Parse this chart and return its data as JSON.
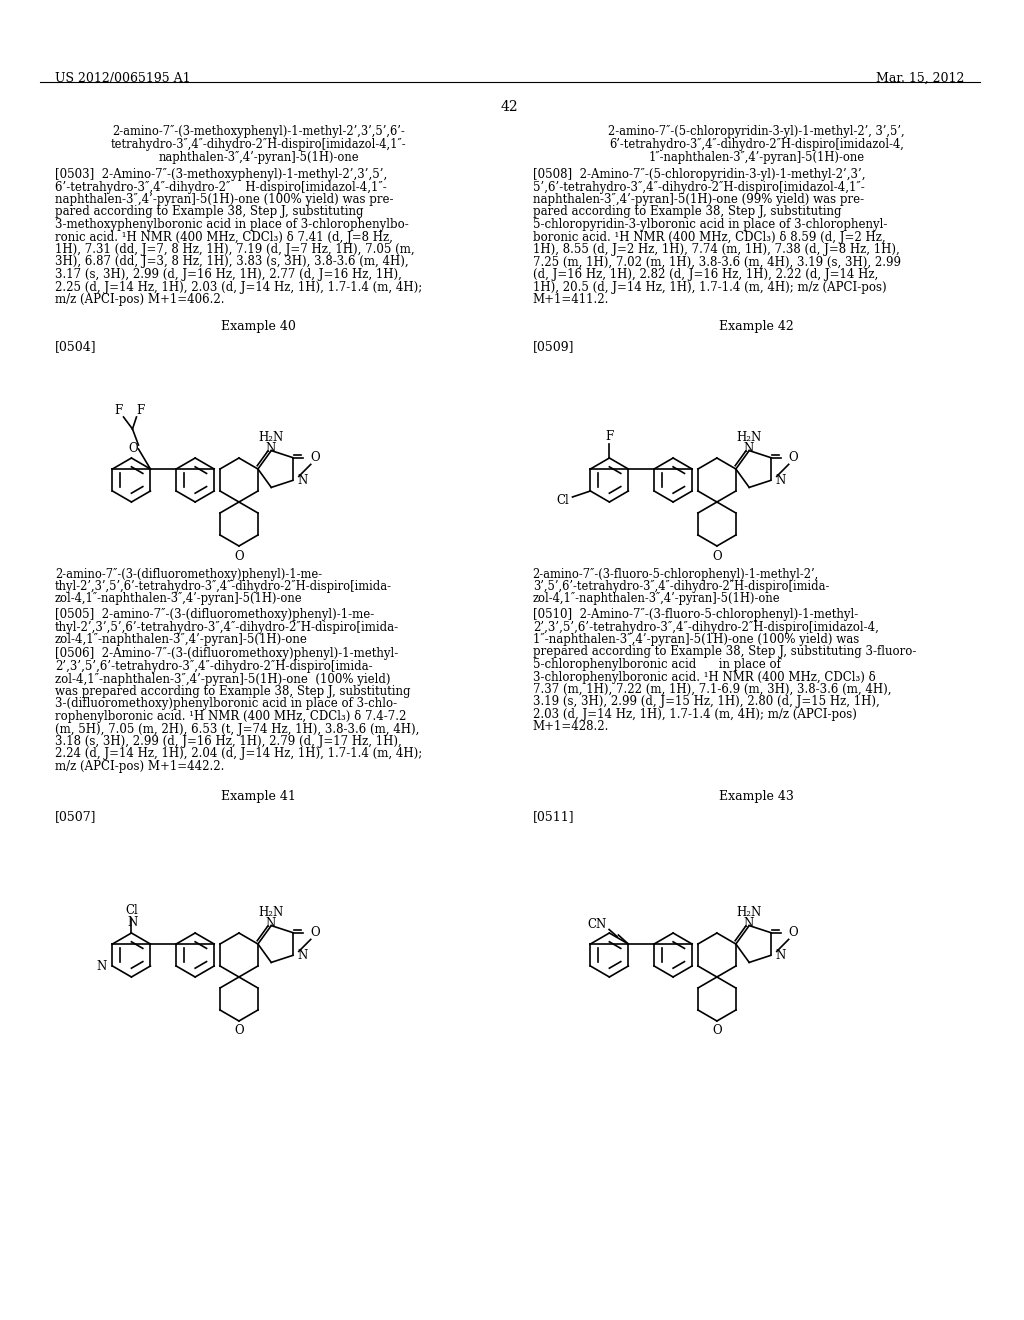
{
  "bg": "#ffffff",
  "header_left": "US 2012/0065195 A1",
  "header_right": "Mar. 15, 2012",
  "page_num": "42"
}
